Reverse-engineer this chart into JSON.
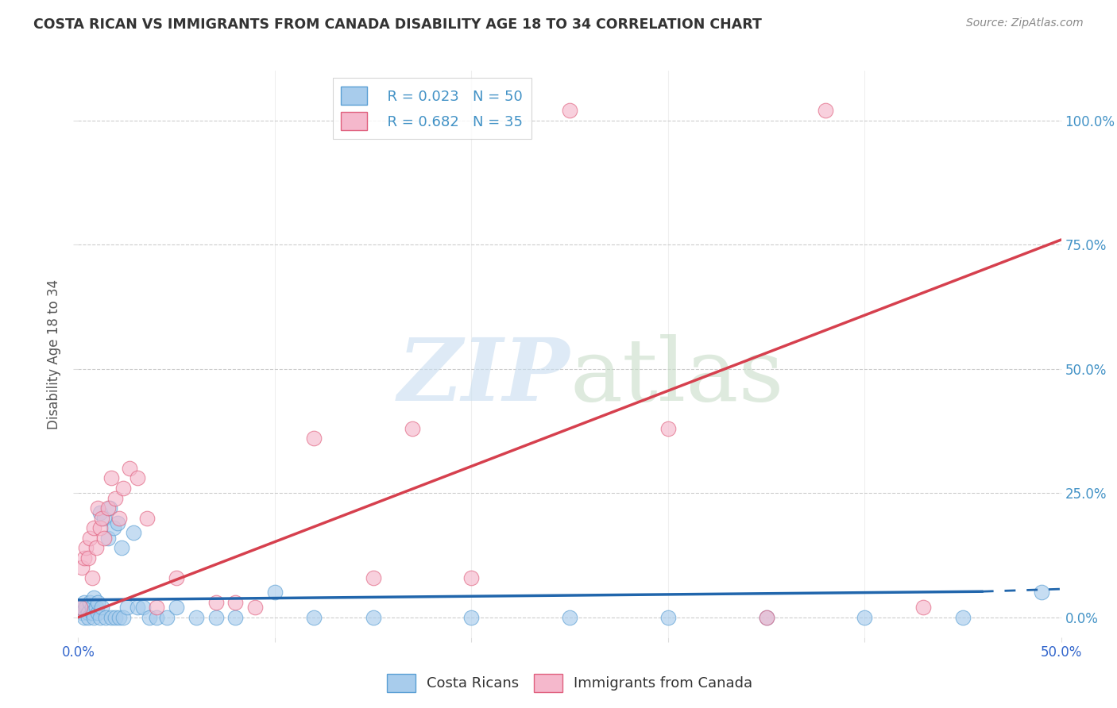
{
  "title": "COSTA RICAN VS IMMIGRANTS FROM CANADA DISABILITY AGE 18 TO 34 CORRELATION CHART",
  "source": "Source: ZipAtlas.com",
  "ylabel": "Disability Age 18 to 34",
  "xlim": [
    0.0,
    0.5
  ],
  "ylim": [
    -0.04,
    1.1
  ],
  "ytick_vals": [
    0.0,
    0.25,
    0.5,
    0.75,
    1.0
  ],
  "ytick_labels": [
    "0.0%",
    "25.0%",
    "50.0%",
    "75.0%",
    "100.0%"
  ],
  "xtick_vals": [
    0.0,
    0.1,
    0.2,
    0.3,
    0.4,
    0.5
  ],
  "xtick_labels": [
    "0.0%",
    "",
    "",
    "",
    "",
    "50.0%"
  ],
  "blue_color": "#a8ccec",
  "blue_edge_color": "#5a9fd4",
  "pink_color": "#f5b8cc",
  "pink_edge_color": "#e0607e",
  "blue_line_color": "#2166ac",
  "pink_line_color": "#d6404e",
  "right_tick_color": "#4292c6",
  "costa_rican_x": [
    0.001,
    0.002,
    0.003,
    0.003,
    0.004,
    0.005,
    0.005,
    0.006,
    0.007,
    0.007,
    0.008,
    0.008,
    0.009,
    0.01,
    0.01,
    0.011,
    0.011,
    0.012,
    0.013,
    0.014,
    0.015,
    0.016,
    0.017,
    0.018,
    0.019,
    0.02,
    0.021,
    0.022,
    0.023,
    0.025,
    0.028,
    0.03,
    0.033,
    0.036,
    0.04,
    0.045,
    0.05,
    0.06,
    0.07,
    0.08,
    0.1,
    0.12,
    0.15,
    0.2,
    0.25,
    0.3,
    0.35,
    0.4,
    0.45,
    0.49
  ],
  "costa_rican_y": [
    0.02,
    0.01,
    0.0,
    0.03,
    0.02,
    0.01,
    0.0,
    0.03,
    0.02,
    0.01,
    0.0,
    0.04,
    0.02,
    0.01,
    0.03,
    0.21,
    0.0,
    0.02,
    0.2,
    0.0,
    0.16,
    0.22,
    0.0,
    0.18,
    0.0,
    0.19,
    0.0,
    0.14,
    0.0,
    0.02,
    0.17,
    0.02,
    0.02,
    0.0,
    0.0,
    0.0,
    0.02,
    0.0,
    0.0,
    0.0,
    0.05,
    0.0,
    0.0,
    0.0,
    0.0,
    0.0,
    0.0,
    0.0,
    0.0,
    0.05
  ],
  "canada_x": [
    0.001,
    0.002,
    0.003,
    0.004,
    0.005,
    0.006,
    0.007,
    0.008,
    0.009,
    0.01,
    0.011,
    0.012,
    0.013,
    0.015,
    0.017,
    0.019,
    0.021,
    0.023,
    0.026,
    0.03,
    0.035,
    0.04,
    0.05,
    0.07,
    0.08,
    0.09,
    0.12,
    0.15,
    0.17,
    0.2,
    0.25,
    0.3,
    0.35,
    0.38,
    0.43
  ],
  "canada_y": [
    0.02,
    0.1,
    0.12,
    0.14,
    0.12,
    0.16,
    0.08,
    0.18,
    0.14,
    0.22,
    0.18,
    0.2,
    0.16,
    0.22,
    0.28,
    0.24,
    0.2,
    0.26,
    0.3,
    0.28,
    0.2,
    0.02,
    0.08,
    0.03,
    0.03,
    0.02,
    0.36,
    0.08,
    0.38,
    0.08,
    1.02,
    0.38,
    0.0,
    1.02,
    0.02
  ],
  "blue_trendline_x": [
    0.0,
    0.46
  ],
  "blue_trendline_y": [
    0.035,
    0.052
  ],
  "pink_trendline_x": [
    0.0,
    0.5
  ],
  "pink_trendline_y": [
    0.0,
    0.76
  ]
}
